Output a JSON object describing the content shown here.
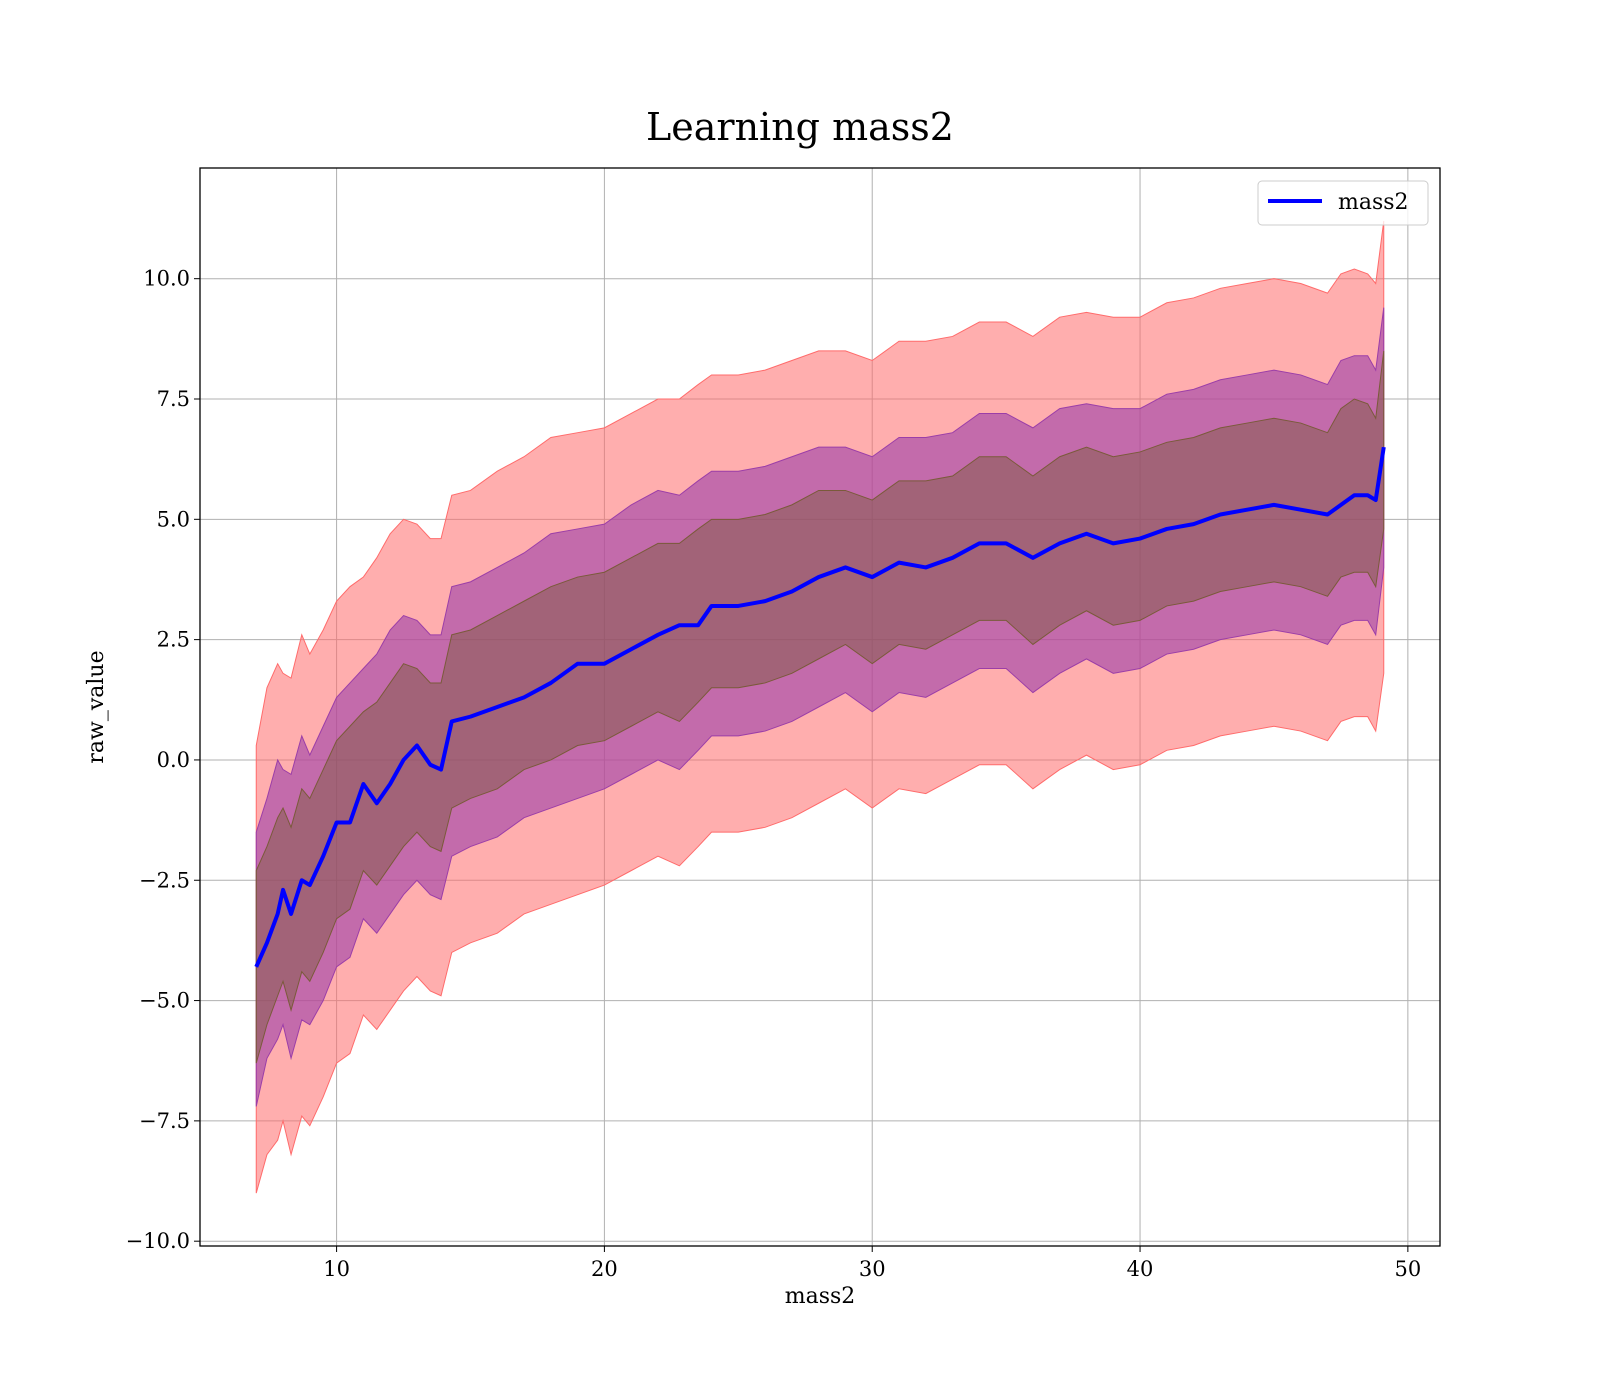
{
  "chart_data": {
    "type": "line",
    "title": "Learning mass2",
    "xlabel": "mass2",
    "ylabel": "raw_value",
    "xlim": [
      4.9,
      51.2
    ],
    "ylim": [
      -10.1,
      12.3
    ],
    "xticks": [
      10,
      20,
      30,
      40,
      50
    ],
    "xtick_labels": [
      "10",
      "20",
      "30",
      "40",
      "50"
    ],
    "yticks": [
      -10,
      -7.5,
      -5,
      -2.5,
      0,
      2.5,
      5,
      7.5,
      10
    ],
    "ytick_labels": [
      "−10.0",
      "−7.5",
      "−5.0",
      "−2.5",
      "0.0",
      "2.5",
      "5.0",
      "7.5",
      "10.0"
    ],
    "grid": true,
    "legend": {
      "position": "top-right",
      "entries": [
        "mass2"
      ]
    },
    "colors": {
      "line": "#0000ff",
      "band_outer": "#ff6b6b",
      "band_middle": "#9b3ea8",
      "band_inner": "#7a5a3a"
    },
    "x": [
      7.0,
      7.4,
      7.8,
      8.0,
      8.3,
      8.7,
      9.0,
      9.5,
      10.0,
      10.5,
      11.0,
      11.5,
      12.0,
      12.5,
      13.0,
      13.5,
      13.9,
      14.3,
      15.0,
      16.0,
      17.0,
      18.0,
      19.0,
      20.0,
      21.0,
      22.0,
      22.8,
      23.5,
      24.0,
      25.0,
      26.0,
      27.0,
      28.0,
      29.0,
      30.0,
      31.0,
      32.0,
      33.0,
      34.0,
      35.0,
      36.0,
      37.0,
      38.0,
      39.0,
      40.0,
      41.0,
      42.0,
      43.0,
      44.0,
      45.0,
      46.0,
      47.0,
      47.5,
      48.0,
      48.5,
      48.8,
      49.1
    ],
    "series": [
      {
        "name": "mass2",
        "values": [
          -4.3,
          -3.8,
          -3.2,
          -2.7,
          -3.2,
          -2.5,
          -2.6,
          -2.0,
          -1.3,
          -1.3,
          -0.5,
          -0.9,
          -0.5,
          0.0,
          0.3,
          -0.1,
          -0.2,
          0.8,
          0.9,
          1.1,
          1.3,
          1.6,
          2.0,
          2.0,
          2.3,
          2.6,
          2.8,
          2.8,
          3.2,
          3.2,
          3.3,
          3.5,
          3.8,
          4.0,
          3.8,
          4.1,
          4.0,
          4.2,
          4.5,
          4.5,
          4.2,
          4.5,
          4.7,
          4.5,
          4.6,
          4.8,
          4.9,
          5.1,
          5.2,
          5.3,
          5.2,
          5.1,
          5.3,
          5.5,
          5.5,
          5.4,
          6.5
        ],
        "band_outer_upper": [
          0.3,
          1.5,
          2.0,
          1.8,
          1.7,
          2.6,
          2.2,
          2.7,
          3.3,
          3.6,
          3.8,
          4.2,
          4.7,
          5.0,
          4.9,
          4.6,
          4.6,
          5.5,
          5.6,
          6.0,
          6.3,
          6.7,
          6.8,
          6.9,
          7.2,
          7.5,
          7.5,
          7.8,
          8.0,
          8.0,
          8.1,
          8.3,
          8.5,
          8.5,
          8.3,
          8.7,
          8.7,
          8.8,
          9.1,
          9.1,
          8.8,
          9.2,
          9.3,
          9.2,
          9.2,
          9.5,
          9.6,
          9.8,
          9.9,
          10.0,
          9.9,
          9.7,
          10.1,
          10.2,
          10.1,
          9.9,
          11.2
        ],
        "band_outer_lower": [
          -9.0,
          -8.2,
          -7.9,
          -7.5,
          -8.2,
          -7.4,
          -7.6,
          -7.0,
          -6.3,
          -6.1,
          -5.3,
          -5.6,
          -5.2,
          -4.8,
          -4.5,
          -4.8,
          -4.9,
          -4.0,
          -3.8,
          -3.6,
          -3.2,
          -3.0,
          -2.8,
          -2.6,
          -2.3,
          -2.0,
          -2.2,
          -1.8,
          -1.5,
          -1.5,
          -1.4,
          -1.2,
          -0.9,
          -0.6,
          -1.0,
          -0.6,
          -0.7,
          -0.4,
          -0.1,
          -0.1,
          -0.6,
          -0.2,
          0.1,
          -0.2,
          -0.1,
          0.2,
          0.3,
          0.5,
          0.6,
          0.7,
          0.6,
          0.4,
          0.8,
          0.9,
          0.9,
          0.6,
          1.8
        ],
        "band_middle_upper": [
          -1.5,
          -0.8,
          0.0,
          -0.2,
          -0.3,
          0.5,
          0.1,
          0.7,
          1.3,
          1.6,
          1.9,
          2.2,
          2.7,
          3.0,
          2.9,
          2.6,
          2.6,
          3.6,
          3.7,
          4.0,
          4.3,
          4.7,
          4.8,
          4.9,
          5.3,
          5.6,
          5.5,
          5.8,
          6.0,
          6.0,
          6.1,
          6.3,
          6.5,
          6.5,
          6.3,
          6.7,
          6.7,
          6.8,
          7.2,
          7.2,
          6.9,
          7.3,
          7.4,
          7.3,
          7.3,
          7.6,
          7.7,
          7.9,
          8.0,
          8.1,
          8.0,
          7.8,
          8.3,
          8.4,
          8.4,
          8.1,
          9.4
        ],
        "band_middle_lower": [
          -7.2,
          -6.2,
          -5.8,
          -5.5,
          -6.2,
          -5.4,
          -5.5,
          -5.0,
          -4.3,
          -4.1,
          -3.3,
          -3.6,
          -3.2,
          -2.8,
          -2.5,
          -2.8,
          -2.9,
          -2.0,
          -1.8,
          -1.6,
          -1.2,
          -1.0,
          -0.8,
          -0.6,
          -0.3,
          0.0,
          -0.2,
          0.2,
          0.5,
          0.5,
          0.6,
          0.8,
          1.1,
          1.4,
          1.0,
          1.4,
          1.3,
          1.6,
          1.9,
          1.9,
          1.4,
          1.8,
          2.1,
          1.8,
          1.9,
          2.2,
          2.3,
          2.5,
          2.6,
          2.7,
          2.6,
          2.4,
          2.8,
          2.9,
          2.9,
          2.6,
          4.0
        ],
        "band_inner_upper": [
          -2.3,
          -1.8,
          -1.2,
          -1.0,
          -1.4,
          -0.6,
          -0.8,
          -0.2,
          0.4,
          0.7,
          1.0,
          1.2,
          1.6,
          2.0,
          1.9,
          1.6,
          1.6,
          2.6,
          2.7,
          3.0,
          3.3,
          3.6,
          3.8,
          3.9,
          4.2,
          4.5,
          4.5,
          4.8,
          5.0,
          5.0,
          5.1,
          5.3,
          5.6,
          5.6,
          5.4,
          5.8,
          5.8,
          5.9,
          6.3,
          6.3,
          5.9,
          6.3,
          6.5,
          6.3,
          6.4,
          6.6,
          6.7,
          6.9,
          7.0,
          7.1,
          7.0,
          6.8,
          7.3,
          7.5,
          7.4,
          7.1,
          8.5
        ],
        "band_inner_lower": [
          -6.3,
          -5.5,
          -4.9,
          -4.6,
          -5.2,
          -4.4,
          -4.6,
          -4.0,
          -3.3,
          -3.1,
          -2.3,
          -2.6,
          -2.2,
          -1.8,
          -1.5,
          -1.8,
          -1.9,
          -1.0,
          -0.8,
          -0.6,
          -0.2,
          0.0,
          0.3,
          0.4,
          0.7,
          1.0,
          0.8,
          1.2,
          1.5,
          1.5,
          1.6,
          1.8,
          2.1,
          2.4,
          2.0,
          2.4,
          2.3,
          2.6,
          2.9,
          2.9,
          2.4,
          2.8,
          3.1,
          2.8,
          2.9,
          3.2,
          3.3,
          3.5,
          3.6,
          3.7,
          3.6,
          3.4,
          3.8,
          3.9,
          3.9,
          3.6,
          4.8
        ]
      }
    ]
  }
}
